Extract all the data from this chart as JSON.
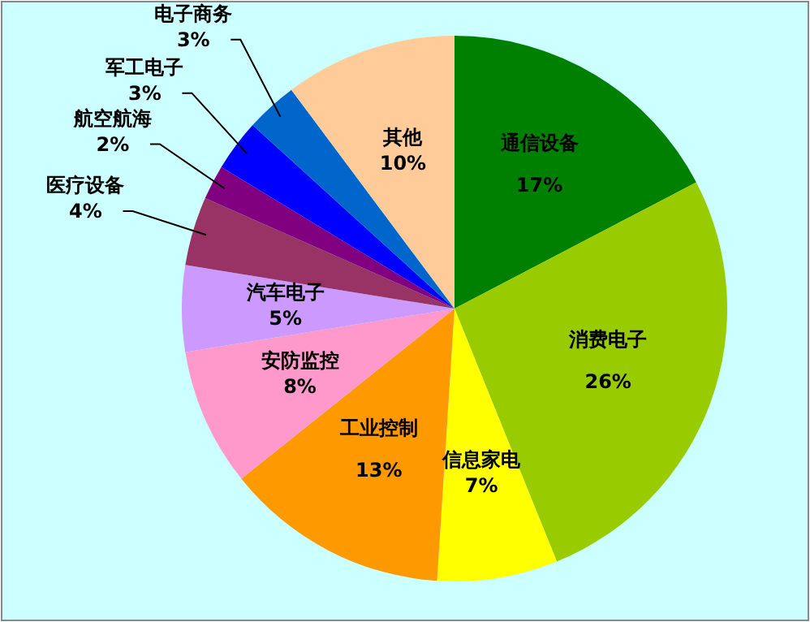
{
  "chart_data": {
    "type": "pie",
    "categories": [
      "通信设备",
      "消费电子",
      "信息家电",
      "工业控制",
      "安防监控",
      "汽车电子",
      "医疗设备",
      "航空航海",
      "军工电子",
      "电子商务",
      "其他"
    ],
    "values": [
      17,
      26,
      7,
      13,
      8,
      5,
      4,
      2,
      3,
      3,
      10
    ],
    "value_labels": [
      "17%",
      "26%",
      "7%",
      "13%",
      "8%",
      "5%",
      "4%",
      "2%",
      "3%",
      "3%",
      "10%"
    ],
    "colors": [
      "#008000",
      "#99cc00",
      "#ffff00",
      "#ff9900",
      "#ff99cc",
      "#cc99ff",
      "#993366",
      "#800080",
      "#0000ff",
      "#0066cc",
      "#ffcc99"
    ]
  }
}
